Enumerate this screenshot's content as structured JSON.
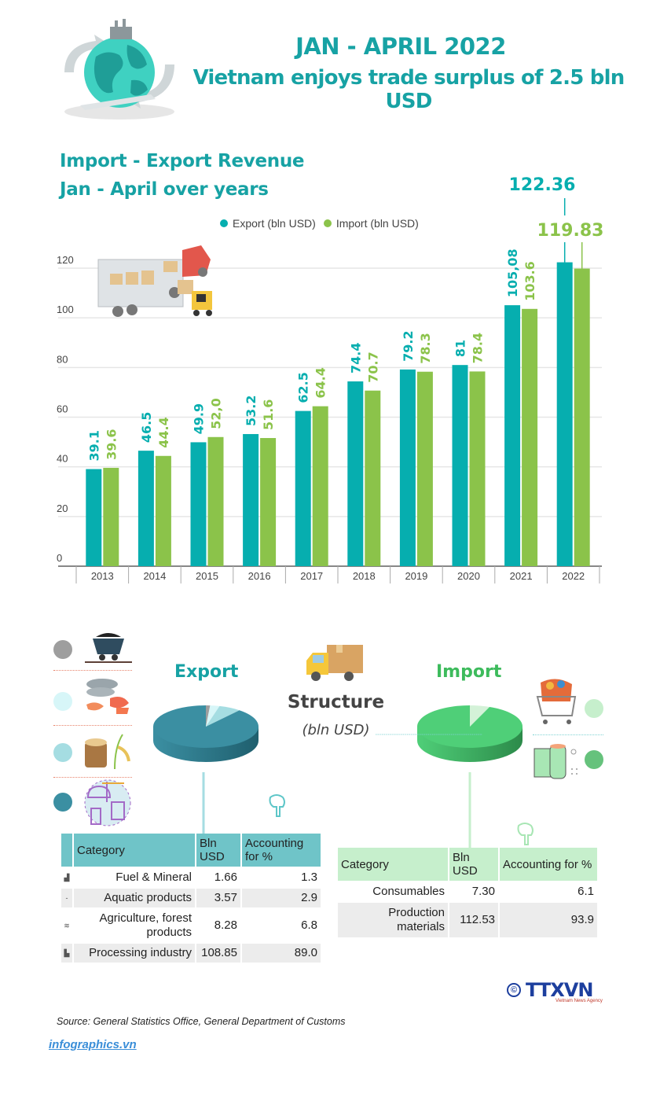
{
  "header": {
    "title_line1": "JAN - APRIL 2022",
    "title_line2": "Vietnam enjoys trade surplus of 2.5 bln USD",
    "illustration": "globe-trade-icon"
  },
  "chart_data": {
    "type": "bar",
    "title": "Import - Export Revenue",
    "subtitle": "Jan - April over years",
    "xlabel": "",
    "ylabel": "",
    "ylim": [
      0,
      130
    ],
    "yticks": [
      0,
      20,
      40,
      60,
      80,
      100,
      120
    ],
    "grid": true,
    "legend_position": "top-center",
    "categories": [
      "2013",
      "2014",
      "2015",
      "2016",
      "2017",
      "2018",
      "2019",
      "2020",
      "2021",
      "2022"
    ],
    "series": [
      {
        "name": "Export (bln USD)",
        "color": "#06aeaf",
        "values": [
          39.1,
          46.5,
          49.9,
          53.2,
          62.5,
          74.4,
          79.2,
          81,
          105.08,
          122.36
        ],
        "labels": [
          "39.1",
          "46.5",
          "49.9",
          "53.2",
          "62.5",
          "74.4",
          "79.2",
          "81",
          "105,08",
          "122.36"
        ]
      },
      {
        "name": "Import (bln USD)",
        "color": "#8bc34a",
        "values": [
          39.6,
          44.4,
          52.0,
          51.6,
          64.4,
          70.7,
          78.3,
          78.4,
          103.6,
          119.83
        ],
        "labels": [
          "39.6",
          "44.4",
          "52,0",
          "51.6",
          "64.4",
          "70.7",
          "78.3",
          "78.4",
          "103.6",
          "119.83"
        ]
      }
    ],
    "illustration": "truck-forklift-icon"
  },
  "structure": {
    "title": "Structure",
    "unit": "(bln USD)",
    "export": {
      "heading": "Export",
      "pie_colors": [
        "#9e9e9e",
        "#d7f6f8",
        "#a5dde2",
        "#3b8fa2"
      ],
      "table": {
        "headers": [
          "Category",
          "Bln USD",
          "Accounting for %"
        ],
        "rows": [
          {
            "icon": "coal-cart-icon",
            "category": "Fuel & Mineral",
            "value": "1.66",
            "percent": "1.3"
          },
          {
            "icon": "fish-icon",
            "category": "Aquatic products",
            "value": "3.57",
            "percent": "2.9"
          },
          {
            "icon": "wood-rice-icon",
            "category": "Agriculture, forest products",
            "value": "8.28",
            "percent": "6.8"
          },
          {
            "icon": "factory-icon",
            "category": "Processing industry",
            "value": "108.85",
            "percent": "89.0"
          }
        ]
      },
      "legend_dot_colors": [
        "#9e9e9e",
        "#d7f6f8",
        "#a5dde2",
        "#3b8fa2"
      ]
    },
    "import": {
      "heading": "Import",
      "pie_colors": [
        "#d4f2d8",
        "#4fcf78"
      ],
      "table": {
        "headers": [
          "Category",
          "Bln USD",
          "Accounting for %"
        ],
        "rows": [
          {
            "icon": "shopping-cart-icon",
            "category": "Consumables",
            "value": "7.30",
            "percent": "6.1"
          },
          {
            "icon": "material-rolls-icon",
            "category": "Production materials",
            "value": "112.53",
            "percent": "93.9"
          }
        ]
      },
      "legend_dot_colors": [
        "#c6efcc",
        "#66c27c"
      ]
    }
  },
  "footer": {
    "source": "Source: General Statistics Office, General Department of Customs",
    "site": "infographics.vn",
    "brand": "TTXVN",
    "brand_tagline": "Vietnam News Agency",
    "copyright_symbol": "©"
  }
}
